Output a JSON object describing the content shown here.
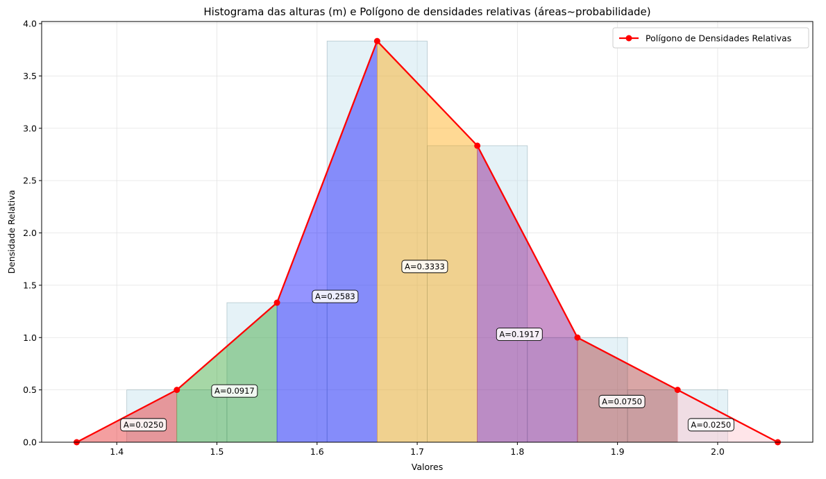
{
  "chart_data": {
    "type": "histogram+line",
    "title": "Histograma das alturas (m) e Polígono de densidades relativas (áreas~probabilidade)",
    "xlabel": "Valores",
    "ylabel": "Densidade Relativa",
    "xlim": [
      1.325,
      2.095
    ],
    "ylim": [
      0,
      4.02
    ],
    "xticks": [
      1.4,
      1.5,
      1.6,
      1.7,
      1.8,
      1.9,
      2.0
    ],
    "xtick_labels": [
      "1.4",
      "1.5",
      "1.6",
      "1.7",
      "1.8",
      "1.9",
      "2.0"
    ],
    "yticks": [
      0.0,
      0.5,
      1.0,
      1.5,
      2.0,
      2.5,
      3.0,
      3.5,
      4.0
    ],
    "ytick_labels": [
      "0.0",
      "0.5",
      "1.0",
      "1.5",
      "2.0",
      "2.5",
      "3.0",
      "3.5",
      "4.0"
    ],
    "grid": true,
    "histogram": {
      "bin_edges": [
        1.41,
        1.51,
        1.61,
        1.71,
        1.81,
        1.91,
        2.01
      ],
      "densities": [
        0.5,
        1.3333,
        3.8333,
        2.8333,
        1.0,
        0.5
      ],
      "color": "#add8e6"
    },
    "polygon": {
      "name": "Polígono de Densidades Relativas",
      "color": "#ff0000",
      "x": [
        1.36,
        1.46,
        1.56,
        1.66,
        1.76,
        1.86,
        1.96,
        2.06
      ],
      "y": [
        0.0,
        0.5,
        1.3333,
        3.8333,
        2.8333,
        1.0,
        0.5,
        0.0
      ]
    },
    "segment_areas": [
      {
        "label": "A=0.0250",
        "color": "#e41a1c",
        "x0": 1.36,
        "x1": 1.46
      },
      {
        "label": "A=0.0917",
        "color": "#2ca02c",
        "x0": 1.46,
        "x1": 1.56
      },
      {
        "label": "A=0.2583",
        "color": "#0000ff",
        "x0": 1.56,
        "x1": 1.66
      },
      {
        "label": "A=0.3333",
        "color": "#ffa500",
        "x0": 1.66,
        "x1": 1.76
      },
      {
        "label": "A=0.1917",
        "color": "#800080",
        "x0": 1.76,
        "x1": 1.86
      },
      {
        "label": "A=0.0750",
        "color": "#a52a2a",
        "x0": 1.86,
        "x1": 1.96
      },
      {
        "label": "A=0.0250",
        "color": "#ffc0cb",
        "x0": 1.96,
        "x1": 2.06
      }
    ],
    "legend": {
      "position": "top-right",
      "entries": [
        "Polígono de Densidades Relativas"
      ]
    }
  }
}
